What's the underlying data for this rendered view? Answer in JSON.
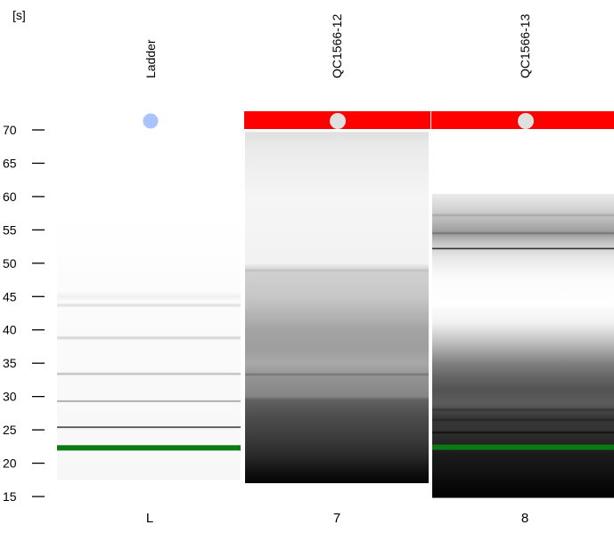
{
  "chart_data": {
    "type": "gel-image",
    "y_unit_label": "[s]",
    "ylim": [
      15,
      70
    ],
    "y_ticks": [
      70,
      65,
      60,
      55,
      50,
      45,
      40,
      35,
      30,
      25,
      20,
      15
    ],
    "grid": false,
    "lanes": [
      {
        "header": "Ladder",
        "footer": "L",
        "status_marker": "ladder",
        "status_bar_color": "",
        "marker_color": "#a9c3ff",
        "signal_range": [
          17.5,
          57
        ],
        "background": [],
        "bands": [
          {
            "y": 45.0,
            "intensity": 0.06,
            "width": 1.4
          },
          {
            "y": 43.7,
            "intensity": 0.13,
            "width": 0.7
          },
          {
            "y": 38.8,
            "intensity": 0.18,
            "width": 0.7
          },
          {
            "y": 33.4,
            "intensity": 0.3,
            "width": 0.5
          },
          {
            "y": 29.3,
            "intensity": 0.42,
            "width": 0.4
          },
          {
            "y": 25.4,
            "intensity": 0.92,
            "width": 0.35
          }
        ],
        "marker_band": {
          "y": 22.3,
          "color": "#0a7a12"
        }
      },
      {
        "header": "QC1566-12",
        "footer": "7",
        "status_marker": "error",
        "status_bar_color": "#ff0000",
        "marker_color": "#e0e0e0",
        "signal_range": [
          17.0,
          69.7
        ],
        "background": [
          [
            69.7,
            0.12
          ],
          [
            67,
            0.08
          ],
          [
            60,
            0.04
          ],
          [
            50,
            0.05
          ],
          [
            49,
            0.18
          ],
          [
            45,
            0.22
          ],
          [
            42,
            0.3
          ],
          [
            40,
            0.36
          ],
          [
            37,
            0.38
          ],
          [
            35,
            0.34
          ],
          [
            33,
            0.42
          ],
          [
            30,
            0.48
          ],
          [
            29.5,
            0.62
          ],
          [
            27,
            0.7
          ],
          [
            24,
            0.76
          ],
          [
            21,
            0.84
          ],
          [
            19,
            0.92
          ],
          [
            17,
            0.98
          ]
        ],
        "bands": [
          {
            "y": 48.9,
            "intensity": 0.25,
            "width": 0.5
          },
          {
            "y": 42.3,
            "intensity": 0.3,
            "width": 0.6
          },
          {
            "y": 33.3,
            "intensity": 0.55,
            "width": 0.6
          }
        ],
        "marker_band": null
      },
      {
        "header": "QC1566-13",
        "footer": "8",
        "status_marker": "error",
        "status_bar_color": "#ff0000",
        "marker_color": "#e0e0e0",
        "signal_range": [
          14.8,
          60.4
        ],
        "background": [
          [
            60.4,
            0.08
          ],
          [
            58,
            0.18
          ],
          [
            56,
            0.3
          ],
          [
            54.5,
            0.4
          ],
          [
            53,
            0.22
          ],
          [
            51,
            0.1
          ],
          [
            48,
            0.02
          ],
          [
            44,
            0.0
          ],
          [
            41,
            0.06
          ],
          [
            38,
            0.26
          ],
          [
            35,
            0.5
          ],
          [
            33,
            0.6
          ],
          [
            31,
            0.68
          ],
          [
            29,
            0.64
          ],
          [
            27,
            0.78
          ],
          [
            25,
            0.8
          ],
          [
            23,
            0.86
          ],
          [
            21,
            0.9
          ],
          [
            19,
            0.92
          ],
          [
            17,
            0.96
          ],
          [
            15,
            0.99
          ]
        ],
        "bands": [
          {
            "y": 57.2,
            "intensity": 0.35,
            "width": 0.6
          },
          {
            "y": 54.5,
            "intensity": 0.55,
            "width": 0.5
          },
          {
            "y": 52.2,
            "intensity": 0.95,
            "width": 0.35
          },
          {
            "y": 28.0,
            "intensity": 0.8,
            "width": 0.6
          },
          {
            "y": 26.5,
            "intensity": 0.85,
            "width": 0.6
          },
          {
            "y": 24.6,
            "intensity": 0.95,
            "width": 0.5
          }
        ],
        "marker_band": {
          "y": 22.4,
          "color": "#0a7a12"
        }
      }
    ]
  }
}
